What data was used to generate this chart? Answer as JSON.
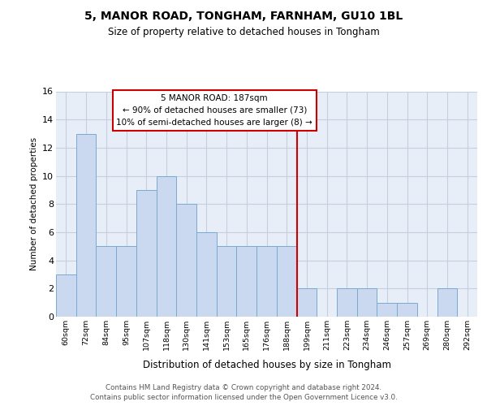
{
  "title1": "5, MANOR ROAD, TONGHAM, FARNHAM, GU10 1BL",
  "title2": "Size of property relative to detached houses in Tongham",
  "xlabel": "Distribution of detached houses by size in Tongham",
  "ylabel": "Number of detached properties",
  "categories": [
    "60sqm",
    "72sqm",
    "84sqm",
    "95sqm",
    "107sqm",
    "118sqm",
    "130sqm",
    "141sqm",
    "153sqm",
    "165sqm",
    "176sqm",
    "188sqm",
    "199sqm",
    "211sqm",
    "223sqm",
    "234sqm",
    "246sqm",
    "257sqm",
    "269sqm",
    "280sqm",
    "292sqm"
  ],
  "values": [
    3,
    13,
    5,
    5,
    9,
    10,
    8,
    6,
    5,
    5,
    5,
    5,
    2,
    0,
    2,
    2,
    1,
    1,
    0,
    2,
    0
  ],
  "bar_color": "#cad9ef",
  "bar_edge_color": "#7aaad0",
  "redline_index": 11,
  "annotation_title": "5 MANOR ROAD: 187sqm",
  "annotation_line1": "← 90% of detached houses are smaller (73)",
  "annotation_line2": "10% of semi-detached houses are larger (8) →",
  "ylim": [
    0,
    16
  ],
  "yticks": [
    0,
    2,
    4,
    6,
    8,
    10,
    12,
    14,
    16
  ],
  "footer1": "Contains HM Land Registry data © Crown copyright and database right 2024.",
  "footer2": "Contains public sector information licensed under the Open Government Licence v3.0.",
  "bg_color": "#ffffff",
  "plot_bg_color": "#e8eef8",
  "grid_color": "#c5cfe0"
}
